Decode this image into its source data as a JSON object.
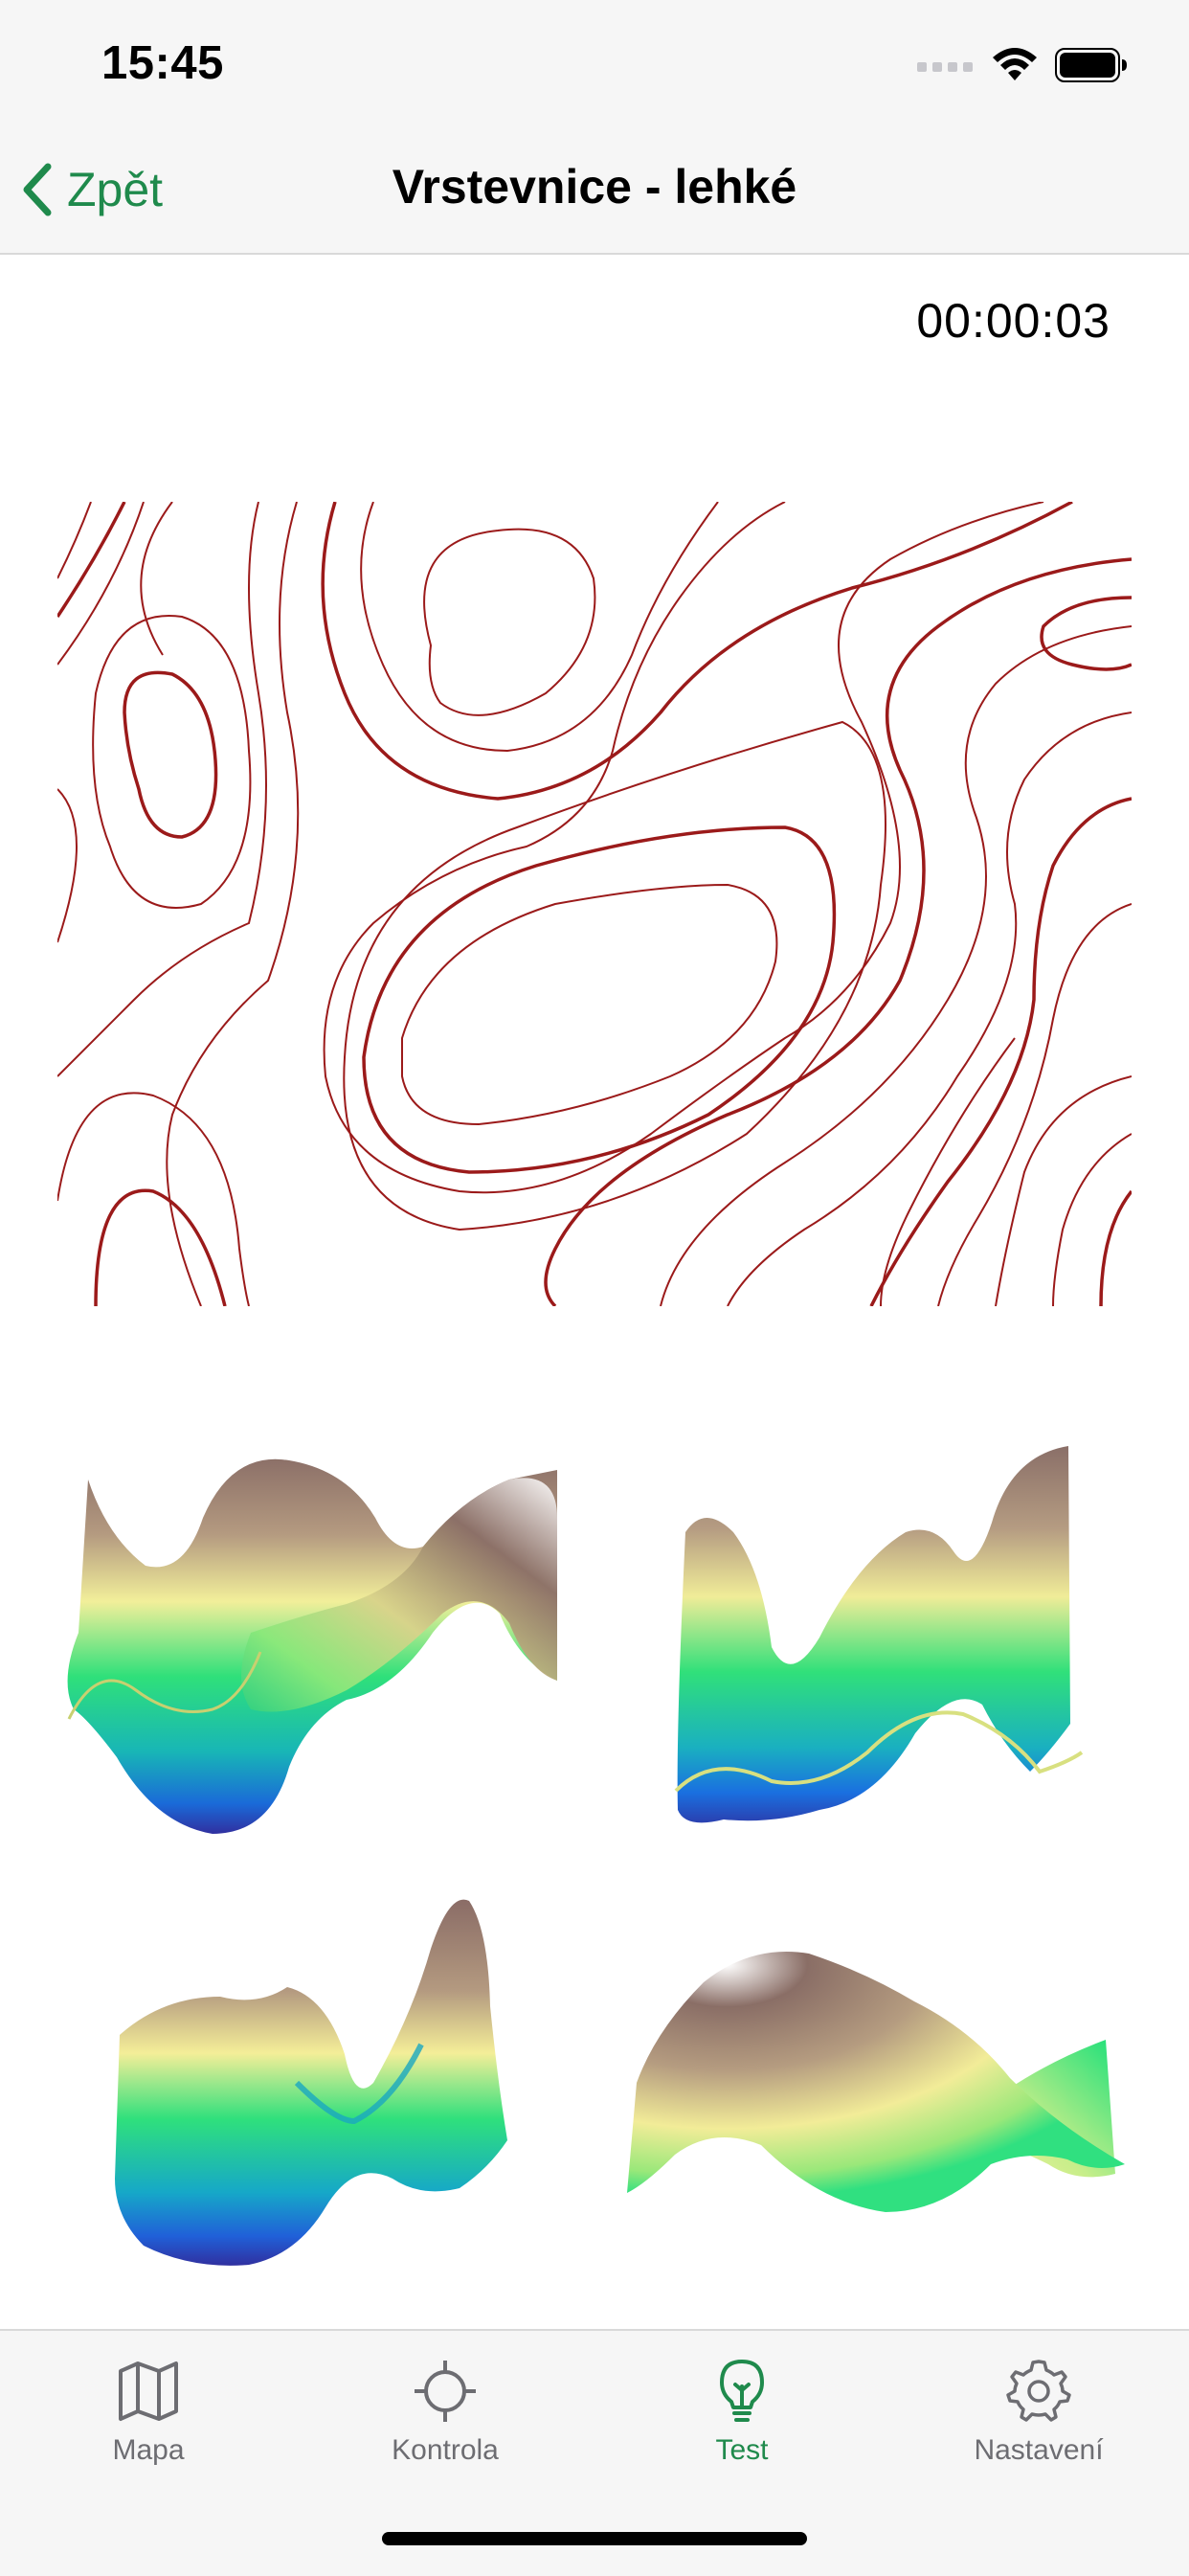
{
  "status_bar": {
    "time": "15:45"
  },
  "nav": {
    "back_label": "Zpět",
    "title": "Vrstevnice - lehké"
  },
  "timer": "00:00:03",
  "map": {
    "contour_color": "#9b1a1a"
  },
  "answers": [
    {
      "name": "surface-option-1"
    },
    {
      "name": "surface-option-2"
    },
    {
      "name": "surface-option-3"
    },
    {
      "name": "surface-option-4"
    }
  ],
  "tabs": [
    {
      "label": "Mapa",
      "icon": "map-icon",
      "active": false
    },
    {
      "label": "Kontrola",
      "icon": "crosshair-icon",
      "active": false
    },
    {
      "label": "Test",
      "icon": "lightbulb-icon",
      "active": true
    },
    {
      "label": "Nastavení",
      "icon": "gear-icon",
      "active": false
    }
  ],
  "colors": {
    "accent": "#1f8a4c",
    "inactive": "#6d6d72"
  }
}
